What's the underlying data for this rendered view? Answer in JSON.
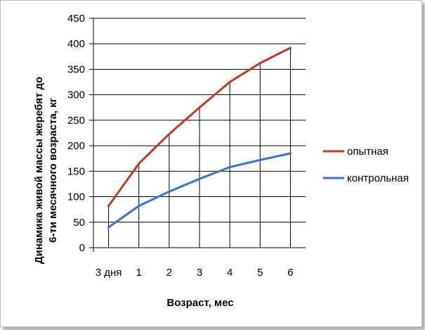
{
  "chart_data": {
    "type": "line",
    "categories": [
      "3 дня",
      "1",
      "2",
      "3",
      "4",
      "5",
      "6"
    ],
    "series": [
      {
        "name": "опытная",
        "color": "#c0392b",
        "values": [
          82,
          165,
          223,
          275,
          325,
          362,
          392
        ]
      },
      {
        "name": "контрольная",
        "color": "#3f72c4",
        "values": [
          40,
          82,
          110,
          135,
          158,
          172,
          185
        ]
      }
    ],
    "y_ticks": [
      0,
      50,
      100,
      150,
      200,
      250,
      300,
      350,
      400,
      450
    ],
    "ylim": [
      0,
      450
    ],
    "xlabel": "Возраст, мес",
    "ylabel_line1": "Динамика  живой массы жеребят до",
    "ylabel_line2": "6-ти месячного возраста, кг",
    "grid": "horizontal and vertical",
    "legend_position": "right"
  }
}
